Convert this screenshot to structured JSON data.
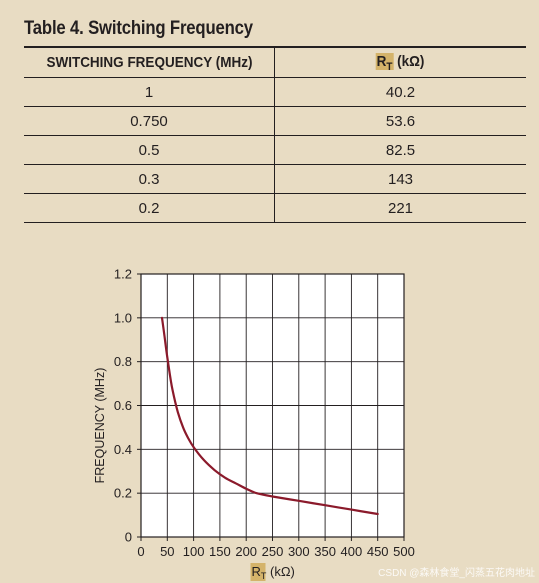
{
  "table": {
    "title": "Table 4. Switching Frequency",
    "header_freq": "SWITCHING FREQUENCY (MHz)",
    "header_rt_symbol": "R",
    "header_rt_sub": "T",
    "header_rt_unit": " (kΩ)",
    "rows": [
      {
        "freq": "1",
        "rt": "40.2"
      },
      {
        "freq": "0.750",
        "rt": "53.6"
      },
      {
        "freq": "0.5",
        "rt": "82.5"
      },
      {
        "freq": "0.3",
        "rt": "143"
      },
      {
        "freq": "0.2",
        "rt": "221"
      }
    ]
  },
  "chart_data": {
    "type": "line",
    "ylabel": "FREQUENCY (MHz)",
    "xlabel_symbol": "R",
    "xlabel_sub": "T",
    "xlabel_unit": " (kΩ)",
    "xlim": [
      0,
      500
    ],
    "ylim": [
      0,
      1.2
    ],
    "x_ticks": [
      0,
      50,
      100,
      150,
      200,
      250,
      300,
      350,
      400,
      450,
      500
    ],
    "y_ticks": [
      0,
      0.2,
      0.4,
      0.6,
      0.8,
      1.0,
      1.2
    ],
    "y_tick_labels": [
      "0",
      "0.2",
      "0.4",
      "0.6",
      "0.8",
      "1.0",
      "1.2"
    ],
    "grid": true,
    "line_color": "#8b1a2b",
    "series": [
      {
        "x": [
          40,
          45,
          50,
          55,
          60,
          70,
          80,
          90,
          100,
          120,
          140,
          160,
          180,
          200,
          220,
          250,
          300,
          350,
          400,
          450
        ],
        "y": [
          1.0,
          0.91,
          0.82,
          0.74,
          0.67,
          0.57,
          0.5,
          0.45,
          0.41,
          0.35,
          0.305,
          0.27,
          0.245,
          0.22,
          0.2,
          0.185,
          0.165,
          0.145,
          0.125,
          0.105
        ]
      }
    ]
  },
  "watermark": "CSDN @森林食堂_闪蒸五花肉地址"
}
